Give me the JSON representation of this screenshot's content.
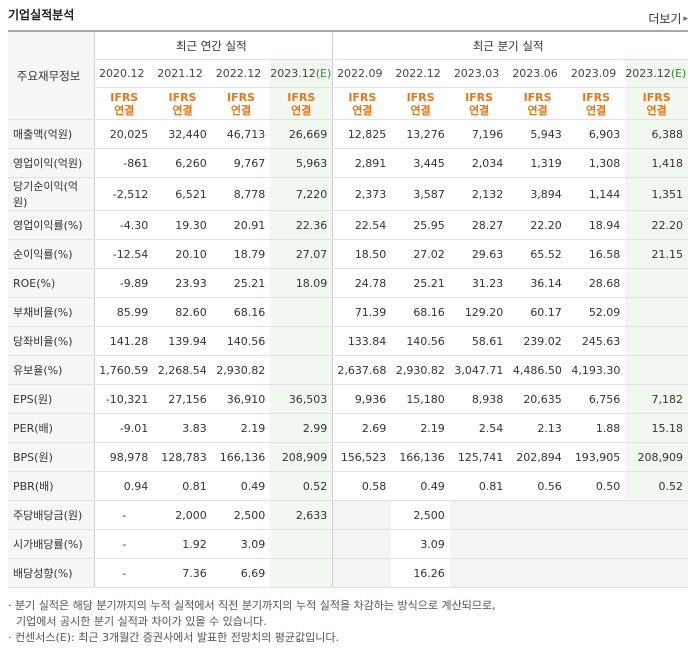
{
  "header": {
    "title": "기업실적분석",
    "more_label": "더보기"
  },
  "table": {
    "side_header": "주요재무정보",
    "annual_header": "최근 연간 실적",
    "quarter_header": "최근 분기 실적",
    "annual_cols": [
      "2020.12",
      "2021.12",
      "2022.12",
      "2023.12"
    ],
    "annual_est_suffix": "(E)",
    "quarter_cols": [
      "2022.09",
      "2022.12",
      "2023.03",
      "2023.06",
      "2023.09",
      "2023.12"
    ],
    "quarter_est_suffix": "(E)",
    "ifrs_line1": "IFRS",
    "ifrs_line2": "연결",
    "rows": [
      {
        "label": "매출액(억원)",
        "values": [
          "20,025",
          "32,440",
          "46,713",
          "26,669",
          "12,825",
          "13,276",
          "7,196",
          "5,943",
          "6,903",
          "6,388"
        ]
      },
      {
        "label": "영업이익(억원)",
        "values": [
          "-861",
          "6,260",
          "9,767",
          "5,963",
          "2,891",
          "3,445",
          "2,034",
          "1,319",
          "1,308",
          "1,418"
        ]
      },
      {
        "label": "당기순이익(억원)",
        "values": [
          "-2,512",
          "6,521",
          "8,778",
          "7,220",
          "2,373",
          "3,587",
          "2,132",
          "3,894",
          "1,144",
          "1,351"
        ]
      },
      {
        "label": "영업이익률(%)",
        "values": [
          "-4.30",
          "19.30",
          "20.91",
          "22.36",
          "22.54",
          "25.95",
          "28.27",
          "22.20",
          "18.94",
          "22.20"
        ]
      },
      {
        "label": "순이익률(%)",
        "values": [
          "-12.54",
          "20.10",
          "18.79",
          "27.07",
          "18.50",
          "27.02",
          "29.63",
          "65.52",
          "16.58",
          "21.15"
        ]
      },
      {
        "label": "ROE(%)",
        "values": [
          "-9.89",
          "23.93",
          "25.21",
          "18.09",
          "24.78",
          "25.21",
          "31.23",
          "36.14",
          "28.68",
          ""
        ]
      },
      {
        "label": "부채비율(%)",
        "values": [
          "85.99",
          "82.60",
          "68.16",
          "",
          "71.39",
          "68.16",
          "129.20",
          "60.17",
          "52.09",
          ""
        ]
      },
      {
        "label": "당좌비율(%)",
        "values": [
          "141.28",
          "139.94",
          "140.56",
          "",
          "133.84",
          "140.56",
          "58.61",
          "239.02",
          "245.63",
          ""
        ]
      },
      {
        "label": "유보율(%)",
        "values": [
          "1,760.59",
          "2,268.54",
          "2,930.82",
          "",
          "2,637.68",
          "2,930.82",
          "3,047.71",
          "4,486.50",
          "4,193.30",
          ""
        ]
      },
      {
        "label": "EPS(원)",
        "values": [
          "-10,321",
          "27,156",
          "36,910",
          "36,503",
          "9,936",
          "15,180",
          "8,938",
          "20,635",
          "6,756",
          "7,182"
        ]
      },
      {
        "label": "PER(배)",
        "values": [
          "-9.01",
          "3.83",
          "2.19",
          "2.99",
          "2.69",
          "2.19",
          "2.54",
          "2.13",
          "1.88",
          "15.18"
        ]
      },
      {
        "label": "BPS(원)",
        "values": [
          "98,978",
          "128,783",
          "166,136",
          "208,909",
          "156,523",
          "166,136",
          "125,741",
          "202,894",
          "193,905",
          "208,909"
        ]
      },
      {
        "label": "PBR(배)",
        "values": [
          "0.94",
          "0.81",
          "0.49",
          "0.52",
          "0.58",
          "0.49",
          "0.81",
          "0.56",
          "0.50",
          "0.52"
        ]
      },
      {
        "label": "주당배당금(원)",
        "values": [
          "-",
          "2,000",
          "2,500",
          "2,633",
          "",
          "2,500",
          "",
          "",
          "",
          ""
        ]
      },
      {
        "label": "시가배당률(%)",
        "values": [
          "-",
          "1.92",
          "3.09",
          "",
          "",
          "3.09",
          "",
          "",
          "",
          ""
        ]
      },
      {
        "label": "배당성향(%)",
        "values": [
          "-",
          "7.36",
          "6.69",
          "",
          "",
          "16.26",
          "",
          "",
          "",
          ""
        ]
      }
    ]
  },
  "notes": {
    "line1": "· 분기 실적은 해당 분기까지의 누적 실적에서 직전 분기까지의 누적 실적을 차감하는 방식으로 계산되므로,",
    "line2": "기업에서 공시한 분기 실적과 차이가 있을 수 있습니다.",
    "line3_prefix": "· 컨센서스(",
    "line3_e": "E",
    "line3_suffix": "): 최근 3개월간 증권사에서 발표한 전망치의 평균값입니다."
  },
  "colors": {
    "accent": "#e8761a",
    "negative": "#dd3333",
    "estimate_bg": "#f1f8ef",
    "estimate_text": "#2c8a2c"
  }
}
